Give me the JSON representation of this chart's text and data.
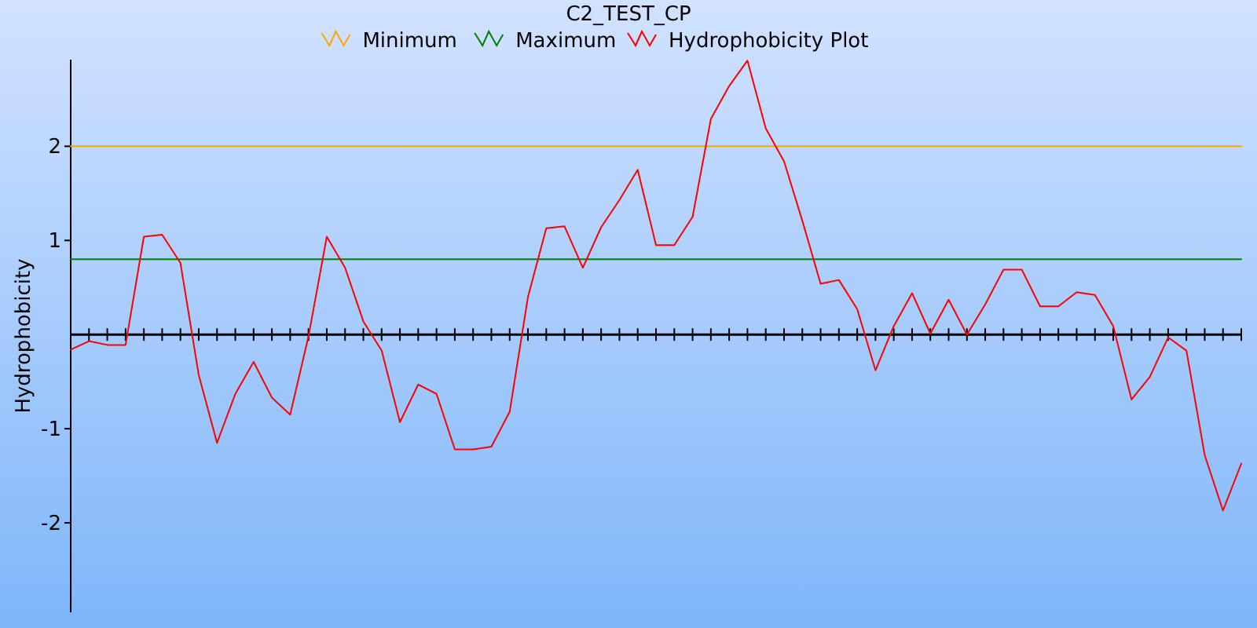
{
  "chart_data": {
    "type": "line",
    "title": "C2_TEST_CP",
    "ylabel": "Hydrophobicity",
    "categories": [
      null,
      null,
      null,
      null,
      null,
      null,
      null,
      null,
      null,
      null,
      null,
      null,
      null,
      null,
      null,
      null,
      null,
      null,
      null,
      null,
      null,
      null,
      null,
      null,
      null,
      null,
      null,
      null,
      null,
      null,
      null,
      null,
      null,
      null,
      null,
      null,
      null,
      null,
      null,
      null,
      null,
      null,
      null,
      null,
      null,
      null,
      null,
      null,
      null,
      null,
      null,
      null,
      null,
      null,
      null,
      null,
      null,
      null,
      null,
      null,
      null,
      null,
      null,
      null,
      null
    ],
    "series": [
      {
        "name": "Minimum",
        "color": "#ffa500",
        "values": [
          2,
          2,
          2,
          2,
          2,
          2,
          2,
          2,
          2,
          2,
          2,
          2,
          2,
          2,
          2,
          2,
          2,
          2,
          2,
          2,
          2,
          2,
          2,
          2,
          2,
          2,
          2,
          2,
          2,
          2,
          2,
          2,
          2,
          2,
          2,
          2,
          2,
          2,
          2,
          2,
          2,
          2,
          2,
          2,
          2,
          2,
          2,
          2,
          2,
          2,
          2,
          2,
          2,
          2,
          2,
          2,
          2,
          2,
          2,
          2,
          2,
          2,
          2,
          2,
          2
        ]
      },
      {
        "name": "Maximum",
        "color": "#008000",
        "values": [
          0.8,
          0.8,
          0.8,
          0.8,
          0.8,
          0.8,
          0.8,
          0.8,
          0.8,
          0.8,
          0.8,
          0.8,
          0.8,
          0.8,
          0.8,
          0.8,
          0.8,
          0.8,
          0.8,
          0.8,
          0.8,
          0.8,
          0.8,
          0.8,
          0.8,
          0.8,
          0.8,
          0.8,
          0.8,
          0.8,
          0.8,
          0.8,
          0.8,
          0.8,
          0.8,
          0.8,
          0.8,
          0.8,
          0.8,
          0.8,
          0.8,
          0.8,
          0.8,
          0.8,
          0.8,
          0.8,
          0.8,
          0.8,
          0.8,
          0.8,
          0.8,
          0.8,
          0.8,
          0.8,
          0.8,
          0.8,
          0.8,
          0.8,
          0.8,
          0.8,
          0.8,
          0.8,
          0.8,
          0.8,
          0.8
        ]
      },
      {
        "name": "Hydrophobicity Plot",
        "color": "#ff0000",
        "values": [
          -0.16,
          -0.07,
          -0.11,
          -0.11,
          1.04,
          1.06,
          0.76,
          -0.43,
          -1.15,
          -0.63,
          -0.29,
          -0.67,
          -0.85,
          -0.02,
          1.04,
          0.71,
          0.14,
          -0.17,
          -0.93,
          -0.53,
          -0.63,
          -1.22,
          -1.22,
          -1.19,
          -0.82,
          0.4,
          1.13,
          1.15,
          0.71,
          1.14,
          1.43,
          1.75,
          0.95,
          0.95,
          1.25,
          2.29,
          2.64,
          2.91,
          2.19,
          1.84,
          1.21,
          0.54,
          0.58,
          0.27,
          -0.38,
          0.09,
          0.44,
          0.01,
          0.37,
          0,
          0.32,
          0.69,
          0.69,
          0.3,
          0.3,
          0.45,
          0.42,
          0.09,
          -0.69,
          -0.45,
          -0.03,
          -0.17,
          -1.28,
          -1.87,
          -1.37
        ]
      }
    ],
    "ylim": [
      -2.95,
      2.92
    ],
    "yticks": [
      -2,
      -1,
      1,
      2
    ],
    "grid": false,
    "legend": "top",
    "marker": "none",
    "line_style": "solid",
    "tick_labels": "y"
  }
}
